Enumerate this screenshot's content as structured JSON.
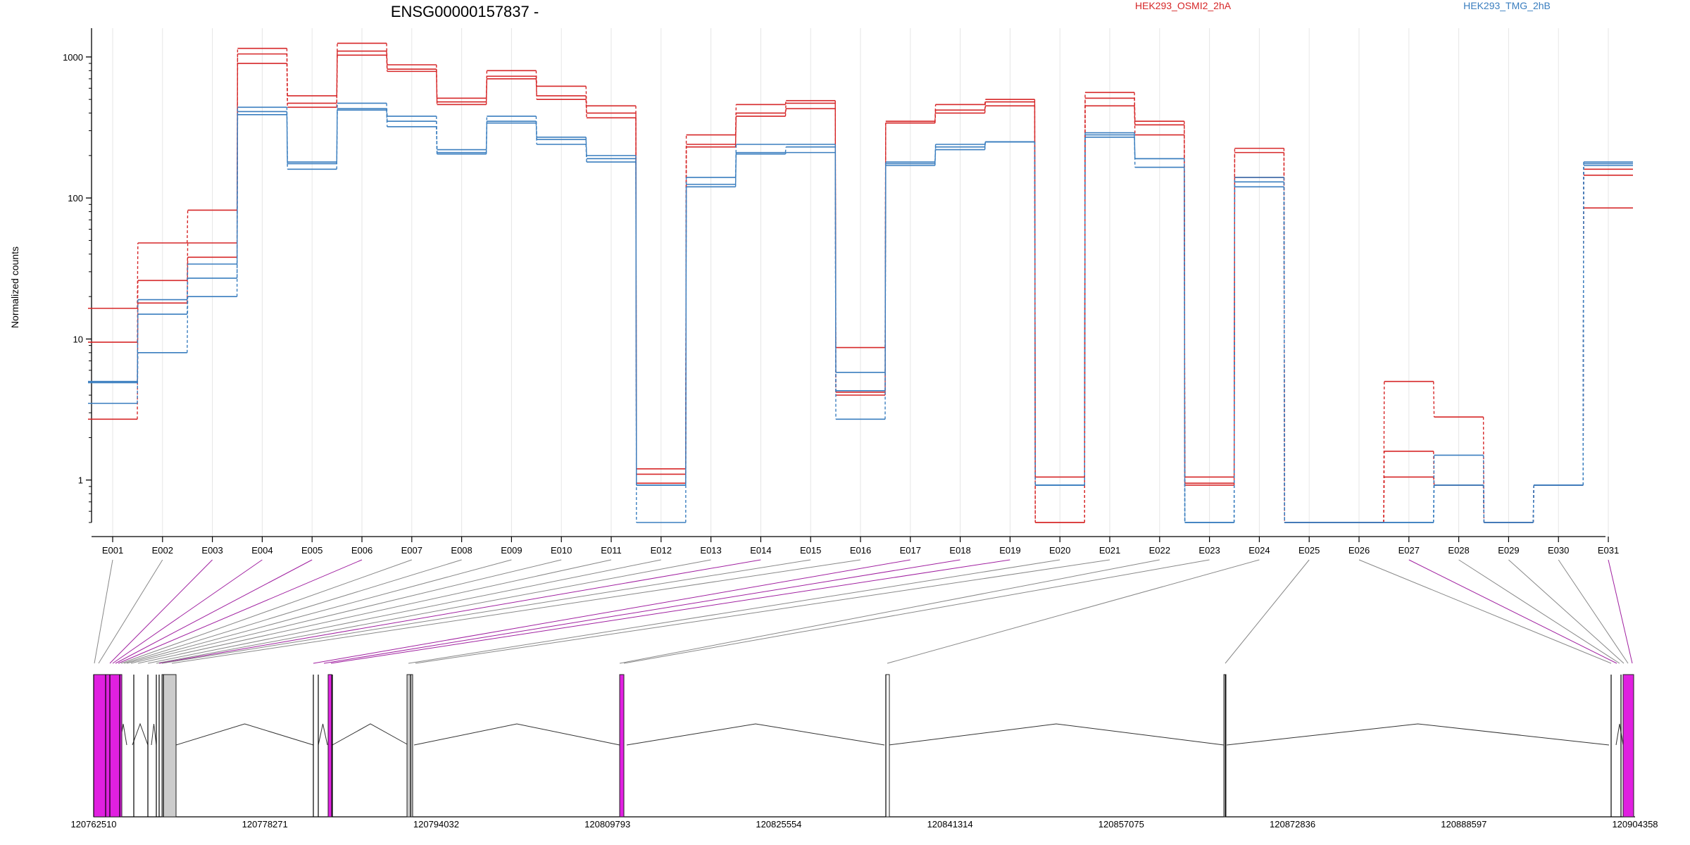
{
  "chart_data": {
    "type": "line",
    "title": "ENSG00000157837 -",
    "ylabel": "Normalized counts",
    "yscale": "log",
    "ylim": [
      0.5,
      1600
    ],
    "yticks": [
      "1",
      "10",
      "100",
      "1000"
    ],
    "grid": true,
    "legend_position": "top-right",
    "colors": {
      "HEK293_OSMI2_2hA": "#d62728",
      "HEK293_TMG_2hB": "#3a7ebf"
    },
    "categories": [
      "E001",
      "E002",
      "E003",
      "E004",
      "E005",
      "E006",
      "E007",
      "E008",
      "E009",
      "E010",
      "E011",
      "E012",
      "E013",
      "E014",
      "E015",
      "E016",
      "E017",
      "E018",
      "E019",
      "E020",
      "E021",
      "E022",
      "E023",
      "E024",
      "E025",
      "E026",
      "E027",
      "E028",
      "E029",
      "E030",
      "E031"
    ],
    "series": [
      {
        "name": "HEK293_OSMI2_2hA",
        "color": "#d62728",
        "values": [
          16.5,
          48,
          82,
          1150,
          530,
          1250,
          880,
          510,
          800,
          620,
          450,
          1.2,
          280,
          460,
          490,
          8.7,
          350,
          460,
          500,
          1.05,
          560,
          350,
          1.05,
          225,
          0.5,
          0.5,
          5.0,
          2.8,
          0.5,
          0.92,
          160
        ]
      },
      {
        "name": "HEK293_OSMI2_2hA",
        "color": "#d62728",
        "values": [
          9.5,
          26,
          48,
          1050,
          470,
          1100,
          820,
          480,
          730,
          530,
          400,
          1.1,
          240,
          400,
          470,
          4.2,
          340,
          420,
          480,
          0.5,
          510,
          330,
          0.95,
          210,
          0.5,
          0.5,
          1.6,
          0.92,
          0.5,
          0.92,
          145
        ]
      },
      {
        "name": "HEK293_OSMI2_2hA",
        "color": "#d62728",
        "values": [
          2.7,
          18,
          38,
          900,
          440,
          1030,
          790,
          460,
          700,
          500,
          370,
          0.95,
          230,
          380,
          430,
          4.0,
          340,
          400,
          450,
          0.5,
          450,
          280,
          0.92,
          140,
          0.5,
          0.5,
          1.05,
          0.92,
          0.5,
          0.92,
          85
        ]
      },
      {
        "name": "HEK293_TMG_2hB",
        "color": "#3a7ebf",
        "values": [
          5.0,
          19,
          34,
          440,
          180,
          470,
          380,
          220,
          380,
          270,
          200,
          0.92,
          140,
          240,
          240,
          5.8,
          180,
          240,
          250,
          0.92,
          290,
          190,
          0.5,
          140,
          0.5,
          0.5,
          0.5,
          1.5,
          0.5,
          0.92,
          180
        ]
      },
      {
        "name": "HEK293_TMG_2hB",
        "color": "#3a7ebf",
        "values": [
          4.9,
          15,
          27,
          410,
          175,
          430,
          350,
          210,
          350,
          260,
          190,
          0.92,
          125,
          210,
          230,
          4.3,
          175,
          230,
          250,
          0.92,
          280,
          190,
          0.5,
          130,
          0.5,
          0.5,
          0.5,
          0.92,
          0.5,
          0.92,
          175
        ]
      },
      {
        "name": "HEK293_TMG_2hB",
        "color": "#3a7ebf",
        "values": [
          3.5,
          8,
          20,
          390,
          160,
          420,
          320,
          205,
          340,
          240,
          180,
          0.5,
          120,
          205,
          210,
          2.7,
          170,
          220,
          250,
          0.92,
          270,
          165,
          0.5,
          120,
          0.5,
          0.5,
          0.5,
          0.92,
          0.5,
          0.92,
          170
        ]
      }
    ],
    "exon_colors": [
      "gray",
      "gray",
      "magenta",
      "magenta",
      "magenta",
      "magenta",
      "gray",
      "gray",
      "gray",
      "gray",
      "gray",
      "gray",
      "gray",
      "magenta",
      "gray",
      "gray",
      "magenta",
      "magenta",
      "magenta",
      "gray",
      "gray",
      "gray",
      "gray",
      "gray",
      "gray",
      "gray",
      "magenta",
      "gray",
      "gray",
      "gray",
      "magenta"
    ],
    "gene_axis_ticks": [
      "120762510",
      "120778271",
      "120794032",
      "120809793",
      "120825554",
      "120841314",
      "120857075",
      "120872836",
      "120888597",
      "120904358"
    ]
  }
}
